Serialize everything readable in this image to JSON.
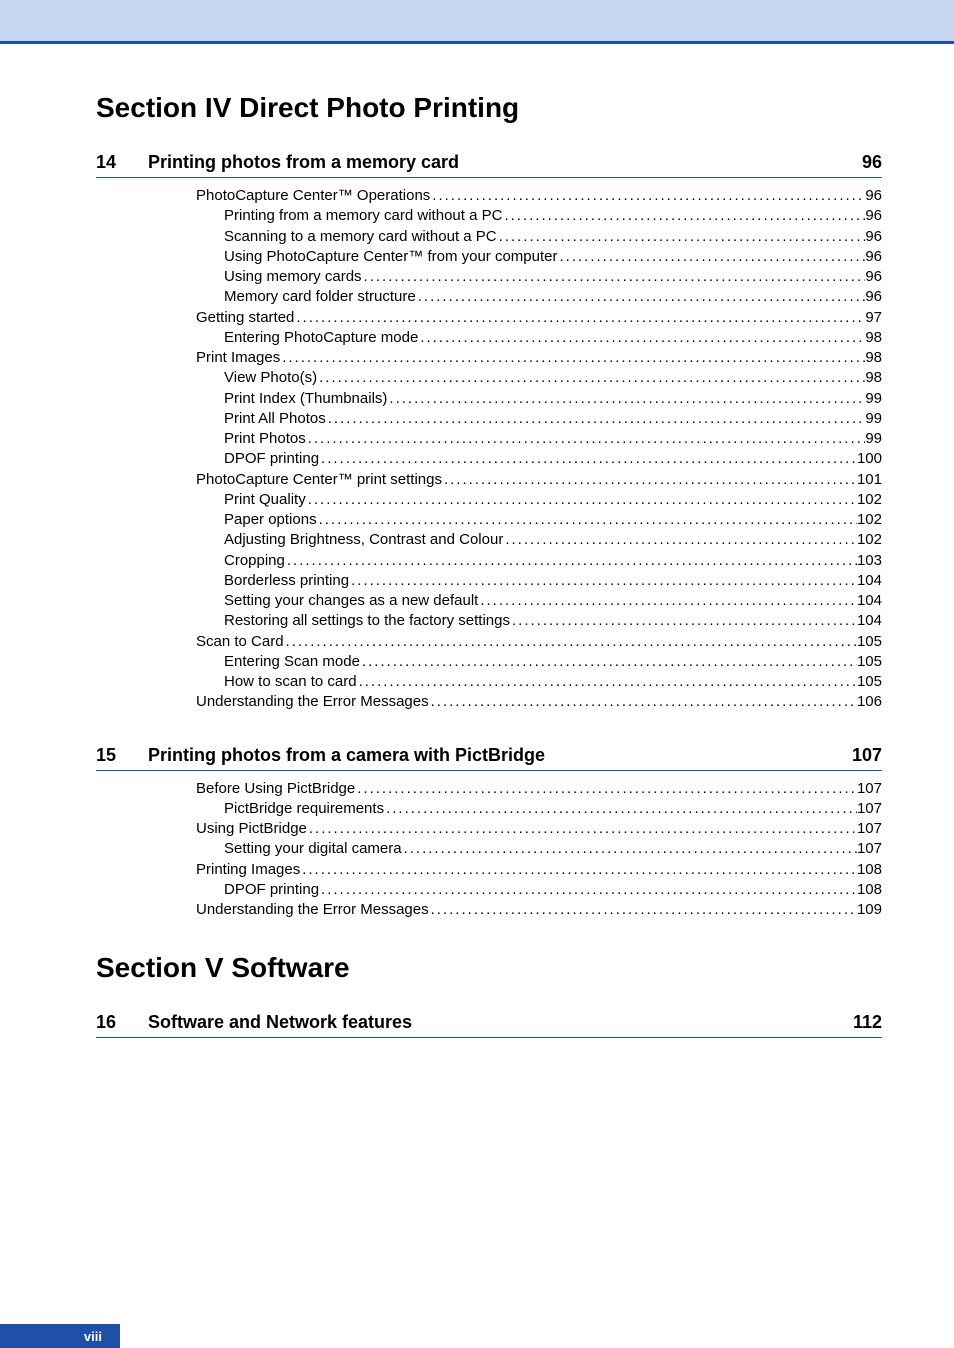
{
  "colors": {
    "header_band": "#c5d6f2",
    "rule": "#1f4fa8",
    "footer_bg": "#1f4fa8",
    "footer_text": "#ffffff",
    "text": "#000000"
  },
  "section_iv": {
    "title": "Section IV Direct Photo Printing"
  },
  "chapter_14": {
    "num": "14",
    "title": "Printing photos from a memory card",
    "page": "96",
    "entries": [
      {
        "level": 1,
        "label": "PhotoCapture Center™ Operations",
        "page": "96"
      },
      {
        "level": 2,
        "label": "Printing from a memory card without a PC",
        "page": "96"
      },
      {
        "level": 2,
        "label": "Scanning to a memory card without a PC",
        "page": "96"
      },
      {
        "level": 2,
        "label": "Using PhotoCapture Center™ from your computer",
        "page": "96"
      },
      {
        "level": 2,
        "label": "Using memory cards",
        "page": "96"
      },
      {
        "level": 2,
        "label": "Memory card folder structure",
        "page": "96"
      },
      {
        "level": 1,
        "label": "Getting started",
        "page": "97"
      },
      {
        "level": 2,
        "label": "Entering PhotoCapture mode",
        "page": "98"
      },
      {
        "level": 1,
        "label": "Print Images",
        "page": "98"
      },
      {
        "level": 2,
        "label": "View Photo(s)",
        "page": "98"
      },
      {
        "level": 2,
        "label": "Print Index (Thumbnails)",
        "page": "99"
      },
      {
        "level": 2,
        "label": "Print All Photos",
        "page": "99"
      },
      {
        "level": 2,
        "label": "Print Photos",
        "page": "99"
      },
      {
        "level": 2,
        "label": "DPOF printing",
        "page": "100"
      },
      {
        "level": 1,
        "label": "PhotoCapture Center™ print settings",
        "page": "101"
      },
      {
        "level": 2,
        "label": "Print Quality",
        "page": "102"
      },
      {
        "level": 2,
        "label": "Paper options",
        "page": "102"
      },
      {
        "level": 2,
        "label": "Adjusting Brightness, Contrast and Colour",
        "page": "102"
      },
      {
        "level": 2,
        "label": "Cropping",
        "page": "103"
      },
      {
        "level": 2,
        "label": "Borderless printing",
        "page": "104"
      },
      {
        "level": 2,
        "label": "Setting your changes as a new default",
        "page": "104"
      },
      {
        "level": 2,
        "label": "Restoring all settings to the factory settings",
        "page": "104"
      },
      {
        "level": 1,
        "label": "Scan to Card",
        "page": "105"
      },
      {
        "level": 2,
        "label": "Entering Scan mode",
        "page": "105"
      },
      {
        "level": 2,
        "label": "How to scan to card",
        "page": "105"
      },
      {
        "level": 1,
        "label": "Understanding the Error Messages",
        "page": "106"
      }
    ]
  },
  "chapter_15": {
    "num": "15",
    "title": "Printing photos from a camera with PictBridge",
    "page": "107",
    "entries": [
      {
        "level": 1,
        "label": "Before Using PictBridge",
        "page": "107"
      },
      {
        "level": 2,
        "label": "PictBridge requirements",
        "page": "107"
      },
      {
        "level": 1,
        "label": "Using PictBridge",
        "page": "107"
      },
      {
        "level": 2,
        "label": "Setting your digital camera",
        "page": "107"
      },
      {
        "level": 1,
        "label": "Printing Images",
        "page": "108"
      },
      {
        "level": 2,
        "label": "DPOF printing",
        "page": "108"
      },
      {
        "level": 1,
        "label": "Understanding the Error Messages",
        "page": "109"
      }
    ]
  },
  "section_v": {
    "title": "Section V  Software"
  },
  "chapter_16": {
    "num": "16",
    "title": "Software and Network features",
    "page": "112"
  },
  "footer": {
    "page_num": "viii"
  }
}
